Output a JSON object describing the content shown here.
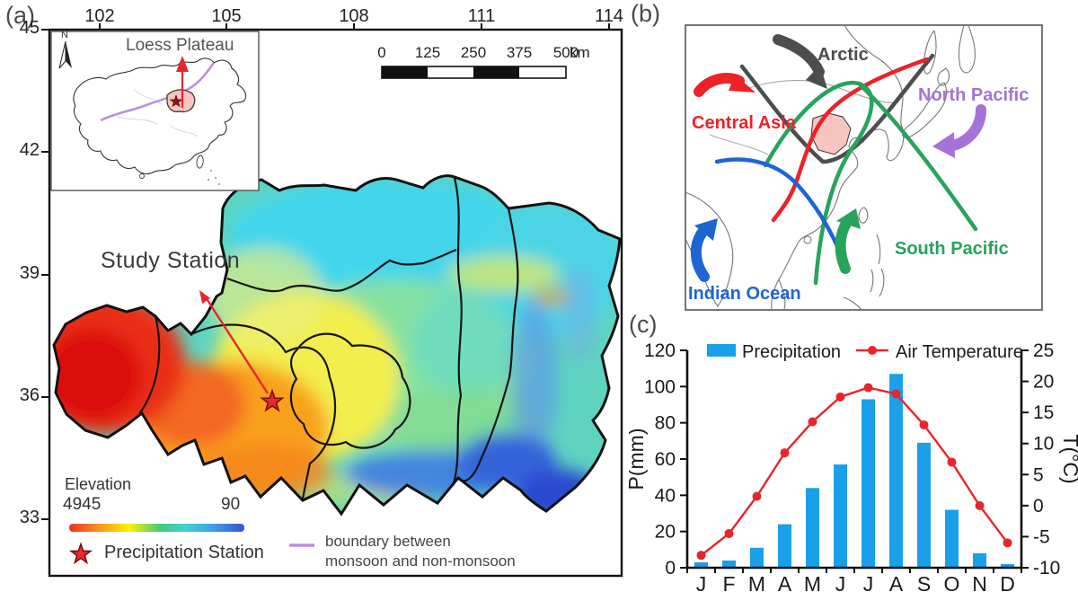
{
  "figure": {
    "panel_a_label": "(a)",
    "panel_b_label": "(b)",
    "panel_c_label": "(c)"
  },
  "panel_a": {
    "top_axis_ticks": [
      "102",
      "105",
      "108",
      "111",
      "114"
    ],
    "left_axis_ticks": [
      "45",
      "42",
      "39",
      "36",
      "33"
    ],
    "inset": {
      "title": "Loess Plateau",
      "north_label": "N"
    },
    "scale_bar": {
      "ticks": [
        "0",
        "125",
        "250",
        "375",
        "500"
      ],
      "unit": "km"
    },
    "study_station_label": "Study Station",
    "legend": {
      "elevation_title": "Elevation",
      "elevation_max": "4945",
      "elevation_min": "90",
      "station_label": "Precipitation Station",
      "boundary_line1": "boundary between",
      "boundary_line2": "monsoon and non-monsoon",
      "boundary_color": "#bb8ee0",
      "station_color": "#e8242c",
      "elevation_gradient": [
        "#ee3124",
        "#f8981d",
        "#fff200",
        "#44c97d",
        "#3ed3d3",
        "#3fa0e8",
        "#3b4fd0"
      ]
    },
    "loess_plateau_fill": "#f6c5c0"
  },
  "panel_b": {
    "air_masses": [
      {
        "name": "Arctic",
        "color": "#4d4d4d"
      },
      {
        "name": "Central Asia",
        "color": "#ec2227"
      },
      {
        "name": "North Pacific",
        "color": "#a472d8"
      },
      {
        "name": "Indian Ocean",
        "color": "#1d66d2"
      },
      {
        "name": "South Pacific",
        "color": "#27a35c"
      }
    ]
  },
  "chart_data": {
    "type": "bar+line",
    "categories": [
      "J",
      "F",
      "M",
      "A",
      "M",
      "J",
      "J",
      "A",
      "S",
      "O",
      "N",
      "D"
    ],
    "series": [
      {
        "name": "Precipitation",
        "type": "bar",
        "axis": "left",
        "unit": "mm",
        "color": "#19a0e9",
        "values": [
          3,
          4,
          11,
          24,
          44,
          57,
          93,
          107,
          69,
          32,
          8,
          2
        ]
      },
      {
        "name": "Air Temperature",
        "type": "line",
        "axis": "right",
        "unit": "°C",
        "color": "#e8242c",
        "values": [
          -8,
          -4.5,
          1.5,
          8.5,
          13.5,
          17.5,
          19,
          18,
          13,
          7,
          0,
          -6
        ]
      }
    ],
    "left_axis": {
      "label": "P(mm)",
      "min": 0,
      "max": 120,
      "ticks": [
        0,
        20,
        40,
        60,
        80,
        100,
        120
      ]
    },
    "right_axis": {
      "label": "T(°C)",
      "min": -10,
      "max": 25,
      "ticks": [
        -10,
        -5,
        0,
        5,
        10,
        15,
        20,
        25
      ]
    },
    "legend_position": "top",
    "grid": false
  }
}
